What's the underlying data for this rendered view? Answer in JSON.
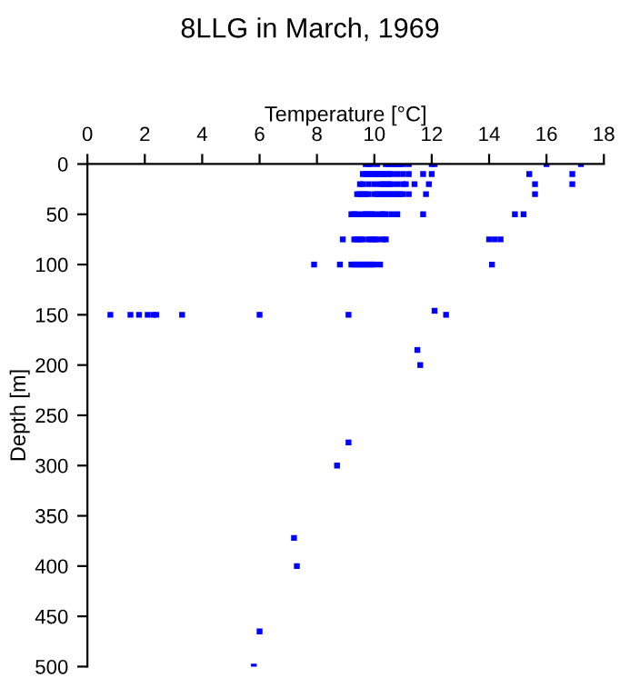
{
  "chart_data": {
    "type": "scatter",
    "title": "8LLG in March, 1969",
    "xlabel": "Temperature [°C]",
    "ylabel": "Depth [m]",
    "xlim": [
      0,
      18
    ],
    "xticks": [
      0,
      2,
      4,
      6,
      8,
      10,
      12,
      14,
      16,
      18
    ],
    "ylim": [
      500,
      0
    ],
    "yticks": [
      0,
      50,
      100,
      150,
      200,
      250,
      300,
      350,
      400,
      450,
      500
    ],
    "grid": false,
    "marker": "square",
    "series": [
      {
        "color": "#0000ff",
        "x": [
          9.7,
          9.8,
          9.9,
          10.1,
          10.4,
          10.5,
          10.6,
          10.7,
          10.8,
          10.9,
          11.0,
          11.2,
          12.0,
          12.1,
          16.0,
          17.2,
          9.6,
          9.7,
          9.8,
          9.9,
          10.0,
          10.1,
          10.2,
          10.3,
          10.4,
          10.5,
          10.6,
          10.8,
          11.0,
          11.2,
          11.7,
          12.0,
          15.4,
          16.9,
          9.5,
          9.6,
          9.8,
          10.0,
          10.2,
          10.3,
          10.4,
          10.5,
          10.6,
          10.8,
          11.0,
          11.1,
          11.4,
          11.9,
          15.6,
          16.9,
          9.4,
          9.5,
          9.6,
          9.7,
          9.8,
          10.0,
          10.1,
          10.2,
          10.3,
          10.4,
          10.5,
          10.6,
          10.7,
          10.8,
          10.9,
          11.0,
          11.2,
          11.8,
          15.6,
          9.2,
          9.3,
          9.4,
          9.6,
          9.7,
          9.8,
          9.9,
          10.0,
          10.2,
          10.3,
          10.4,
          10.6,
          10.8,
          11.7,
          14.9,
          15.2,
          8.9,
          9.3,
          9.4,
          9.5,
          9.6,
          9.8,
          9.9,
          10.0,
          10.1,
          10.3,
          10.4,
          14.0,
          14.2,
          14.4,
          7.9,
          8.8,
          9.2,
          9.3,
          9.4,
          9.5,
          9.6,
          9.7,
          9.8,
          9.9,
          10.0,
          10.2,
          14.1,
          0.8,
          1.5,
          1.8,
          2.1,
          2.3,
          2.4,
          3.3,
          6.0,
          9.1,
          12.5,
          12.1,
          11.5,
          11.6,
          9.1,
          8.7,
          7.2,
          7.3,
          6.0,
          5.8
        ],
        "values": [
          0,
          0,
          0,
          0,
          0,
          0,
          0,
          0,
          0,
          0,
          0,
          0,
          0,
          0,
          0,
          0,
          10,
          10,
          10,
          10,
          10,
          10,
          10,
          10,
          10,
          10,
          10,
          10,
          10,
          10,
          10,
          10,
          10,
          10,
          20,
          20,
          20,
          20,
          20,
          20,
          20,
          20,
          20,
          20,
          20,
          20,
          20,
          20,
          20,
          20,
          30,
          30,
          30,
          30,
          30,
          30,
          30,
          30,
          30,
          30,
          30,
          30,
          30,
          30,
          30,
          30,
          30,
          30,
          30,
          50,
          50,
          50,
          50,
          50,
          50,
          50,
          50,
          50,
          50,
          50,
          50,
          50,
          50,
          50,
          50,
          75,
          75,
          75,
          75,
          75,
          75,
          75,
          75,
          75,
          75,
          75,
          75,
          75,
          75,
          100,
          100,
          100,
          100,
          100,
          100,
          100,
          100,
          100,
          100,
          100,
          100,
          100,
          150,
          150,
          150,
          150,
          150,
          150,
          150,
          150,
          150,
          150,
          146,
          185,
          200,
          277,
          300,
          372,
          400,
          465,
          500
        ]
      }
    ]
  }
}
